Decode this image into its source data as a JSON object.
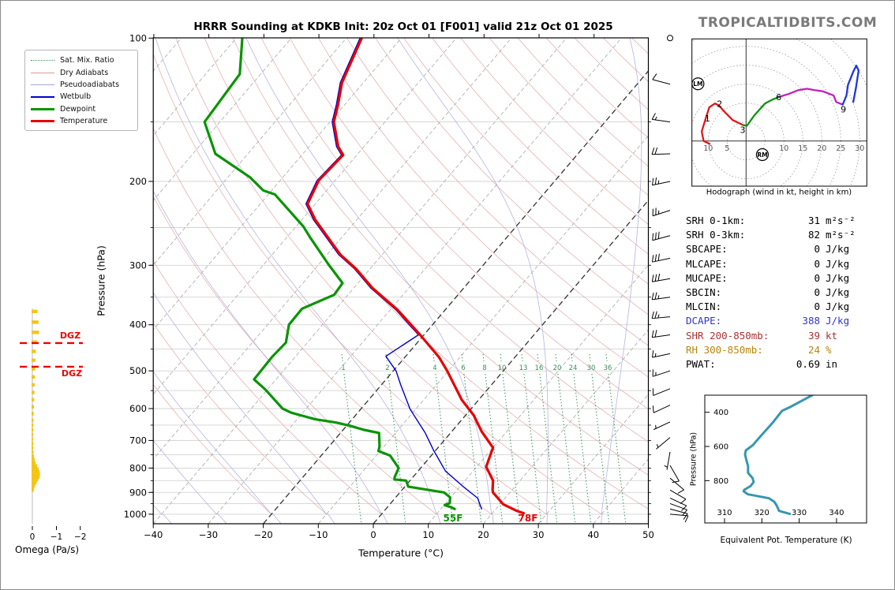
{
  "page": {
    "title": "HRRR Sounding at KDKB Init: 20z Oct 01 [F001] valid 21z Oct 01 2025",
    "brand": "TROPICALTIDBITS.COM"
  },
  "skewt": {
    "xlabel": "Temperature (°C)",
    "ylabel": "Pressure (hPa)",
    "surface_temp_label": "78F",
    "surface_dewp_label": "55F",
    "legend": [
      {
        "label": "Sat. Mix. Ratio"
      },
      {
        "label": "Dry Adiabats"
      },
      {
        "label": "Pseudoadiabats"
      },
      {
        "label": "Wetbulb"
      },
      {
        "label": "Dewpoint"
      },
      {
        "label": "Temperature"
      }
    ]
  },
  "omega": {
    "label": "Omega (Pa/s)",
    "ticks": [
      "0",
      "−1",
      "−2"
    ],
    "dgz_label": "DGZ"
  },
  "hodograph": {
    "caption": "Hodograph (wind in kt, height in km)",
    "lm_label": "LM",
    "rm_label": "RM"
  },
  "thetae": {
    "xlabel": "Equivalent Pot. Temperature (K)",
    "ylabel": "Pressure (hPa)"
  },
  "stats": {
    "rows": [
      {
        "label": "SRH 0-1km:",
        "value": "31",
        "unit": "m²s⁻²",
        "color": "#000000"
      },
      {
        "label": "SRH 0-3km:",
        "value": "82",
        "unit": "m²s⁻²",
        "color": "#000000"
      },
      {
        "label": "SBCAPE:",
        "value": "0",
        "unit": "J/kg",
        "color": "#000000"
      },
      {
        "label": "MLCAPE:",
        "value": "0",
        "unit": "J/kg",
        "color": "#000000"
      },
      {
        "label": "MUCAPE:",
        "value": "0",
        "unit": "J/kg",
        "color": "#000000"
      },
      {
        "label": "SBCIN:",
        "value": "0",
        "unit": "J/kg",
        "color": "#000000"
      },
      {
        "label": "MLCIN:",
        "value": "0",
        "unit": "J/kg",
        "color": "#000000"
      },
      {
        "label": "DCAPE:",
        "value": "388",
        "unit": "J/kg",
        "color": "#3333cc"
      },
      {
        "label": "SHR 200-850mb:",
        "value": "39",
        "unit": "kt",
        "color": "#aa3333"
      },
      {
        "label": "RH 300-850mb:",
        "value": "24",
        "unit": "%",
        "color": "#b8860b"
      },
      {
        "label": "PWAT:",
        "value": "0.69",
        "unit": "in",
        "color": "#000000"
      }
    ]
  },
  "chart_data": {
    "type": "skewt-log-p sounding",
    "temp_axis": {
      "label": "Temperature (°C)",
      "min": -40,
      "max": 50,
      "tick_step": 10
    },
    "pressure_axis": {
      "label": "Pressure (hPa)",
      "min": 100,
      "max": 1045,
      "labeled_ticks": [
        100,
        200,
        300,
        400,
        500,
        600,
        700,
        800,
        900,
        1000
      ],
      "minor_step": 50
    },
    "temperature_profile_p_degC": [
      [
        100,
        -77.2
      ],
      [
        124,
        -73.9
      ],
      [
        138,
        -71.2
      ],
      [
        150,
        -69.3
      ],
      [
        169,
        -64.7
      ],
      [
        176,
        -62.5
      ],
      [
        199,
        -63.0
      ],
      [
        223,
        -61.4
      ],
      [
        241,
        -57.5
      ],
      [
        257,
        -53.7
      ],
      [
        285,
        -47.6
      ],
      [
        305,
        -42.6
      ],
      [
        335,
        -36.6
      ],
      [
        372,
        -28.7
      ],
      [
        420,
        -20.7
      ],
      [
        468,
        -13.8
      ],
      [
        500,
        -10.2
      ],
      [
        575,
        -3.1
      ],
      [
        620,
        1.5
      ],
      [
        670,
        5.4
      ],
      [
        725,
        10.0
      ],
      [
        795,
        11.7
      ],
      [
        850,
        15.1
      ],
      [
        888,
        16.4
      ],
      [
        900,
        16.9
      ],
      [
        953,
        20.6
      ],
      [
        985,
        24.2
      ],
      [
        995,
        25.7
      ]
    ],
    "dewpoint_profile_p_degC": [
      [
        100,
        -98.9
      ],
      [
        119,
        -93.8
      ],
      [
        150,
        -92.8
      ],
      [
        175,
        -85.9
      ],
      [
        196,
        -76.0
      ],
      [
        209,
        -71.5
      ],
      [
        213,
        -68.8
      ],
      [
        249,
        -58.6
      ],
      [
        262,
        -55.8
      ],
      [
        299,
        -48.2
      ],
      [
        327,
        -42.8
      ],
      [
        346,
        -42.5
      ],
      [
        370,
        -46.2
      ],
      [
        400,
        -46.1
      ],
      [
        436,
        -43.9
      ],
      [
        467,
        -44.2
      ],
      [
        521,
        -44.0
      ],
      [
        547,
        -40.4
      ],
      [
        600,
        -34.3
      ],
      [
        612,
        -32.1
      ],
      [
        632,
        -26.7
      ],
      [
        642,
        -22.4
      ],
      [
        652,
        -19.4
      ],
      [
        665,
        -16.2
      ],
      [
        675,
        -13.0
      ],
      [
        721,
        -10.8
      ],
      [
        737,
        -10.3
      ],
      [
        753,
        -7.5
      ],
      [
        800,
        -4.0
      ],
      [
        837,
        -3.3
      ],
      [
        845,
        -3.0
      ],
      [
        850,
        -0.7
      ],
      [
        875,
        0.6
      ],
      [
        900,
        8.0
      ],
      [
        922,
        9.9
      ],
      [
        948,
        10.7
      ],
      [
        957,
        10.1
      ],
      [
        967,
        11.6
      ],
      [
        975,
        12.5
      ]
    ],
    "wetbulb_profile_p_degC": [
      [
        100,
        -77.5
      ],
      [
        124,
        -74.2
      ],
      [
        138,
        -71.5
      ],
      [
        150,
        -69.6
      ],
      [
        169,
        -65.0
      ],
      [
        176,
        -62.8
      ],
      [
        199,
        -63.3
      ],
      [
        223,
        -61.7
      ],
      [
        241,
        -57.8
      ],
      [
        257,
        -54.0
      ],
      [
        285,
        -47.9
      ],
      [
        305,
        -42.9
      ],
      [
        335,
        -36.9
      ],
      [
        372,
        -29.0
      ],
      [
        420,
        -21.0
      ],
      [
        466,
        -23.6
      ],
      [
        500,
        -19.5
      ],
      [
        535,
        -16.5
      ],
      [
        602,
        -11.0
      ],
      [
        675,
        -4.6
      ],
      [
        737,
        -0.2
      ],
      [
        812,
        5.0
      ],
      [
        875,
        10.6
      ],
      [
        925,
        15.0
      ],
      [
        975,
        17.4
      ]
    ],
    "surface_values": {
      "temperature_F": 78,
      "dewpoint_F": 55
    },
    "mixing_ratio_labels_gkg": [
      1,
      2,
      4,
      6,
      8,
      10,
      13,
      16,
      20,
      24,
      30,
      36
    ],
    "mixing_ratio_label_x": [
      434,
      490,
      550,
      586,
      613,
      635,
      662,
      682,
      705,
      725,
      748,
      769
    ],
    "isotherms": {
      "min": -110,
      "max": 50,
      "step": 10,
      "highlighted": [
        0,
        -20
      ]
    },
    "dry_adiabats_theta_degC": {
      "min": -20,
      "max": 210,
      "step": 10
    },
    "pseudoadiabats_t1000_degC": {
      "min": -60,
      "max": 60,
      "step": 10
    },
    "dgz_pressures_hPa": [
      437,
      490
    ],
    "omega_bars_p_PaPerS": [
      [
        375,
        -0.2
      ],
      [
        395,
        -0.24
      ],
      [
        415,
        -0.26
      ],
      [
        435,
        -0.18
      ],
      [
        455,
        -0.13
      ],
      [
        475,
        -0.11
      ],
      [
        495,
        -0.1
      ],
      [
        515,
        -0.09
      ],
      [
        535,
        -0.08
      ],
      [
        555,
        -0.07
      ],
      [
        575,
        -0.06
      ],
      [
        595,
        -0.05
      ],
      [
        615,
        -0.04
      ],
      [
        635,
        -0.03
      ],
      [
        650,
        -0.02
      ],
      [
        665,
        -0.02
      ],
      [
        680,
        -0.015
      ],
      [
        695,
        -0.015
      ],
      [
        710,
        -0.02
      ],
      [
        725,
        -0.02
      ],
      [
        740,
        -0.03
      ],
      [
        755,
        -0.05
      ],
      [
        768,
        -0.08
      ],
      [
        780,
        -0.12
      ],
      [
        792,
        -0.18
      ],
      [
        803,
        -0.24
      ],
      [
        814,
        -0.28
      ],
      [
        825,
        -0.3
      ],
      [
        836,
        -0.28
      ],
      [
        847,
        -0.22
      ],
      [
        858,
        -0.16
      ],
      [
        870,
        -0.1
      ],
      [
        880,
        -0.06
      ],
      [
        890,
        -0.04
      ]
    ],
    "omega_axis": {
      "ticks": [
        0,
        -1,
        -2
      ],
      "unit": "Pa/s"
    },
    "winds_p_kt_dirFrom": [
      [
        100,
        0,
        0
      ],
      [
        125,
        10,
        285
      ],
      [
        150,
        15,
        278
      ],
      [
        175,
        20,
        268
      ],
      [
        200,
        25,
        258
      ],
      [
        230,
        28,
        252
      ],
      [
        260,
        30,
        255
      ],
      [
        290,
        30,
        258
      ],
      [
        320,
        30,
        260
      ],
      [
        350,
        28,
        262
      ],
      [
        385,
        25,
        265
      ],
      [
        420,
        22,
        262
      ],
      [
        460,
        18,
        258
      ],
      [
        500,
        15,
        252
      ],
      [
        545,
        12,
        248
      ],
      [
        590,
        10,
        245
      ],
      [
        640,
        8,
        245
      ],
      [
        690,
        5,
        230
      ],
      [
        740,
        5,
        190
      ],
      [
        790,
        10,
        150
      ],
      [
        840,
        14,
        130
      ],
      [
        890,
        14,
        120
      ],
      [
        925,
        13,
        115
      ],
      [
        950,
        12,
        110
      ],
      [
        975,
        10,
        105
      ],
      [
        1000,
        10,
        95
      ]
    ],
    "hodograph": {
      "ring_step_kt": 5,
      "left_axis_labels": [
        10,
        5
      ],
      "right_axis_labels": [
        10,
        15,
        20,
        25,
        30
      ],
      "segments": [
        {
          "name": "0-3km",
          "color": "#e01818",
          "uv": [
            [
              -9.6,
              -0.8
            ],
            [
              -11.2,
              0.0
            ],
            [
              -11.7,
              2.5
            ],
            [
              -10.8,
              5.5
            ],
            [
              -9.7,
              8.9
            ],
            [
              -8.2,
              9.9
            ],
            [
              -7.2,
              9.4
            ],
            [
              -5.5,
              7.5
            ],
            [
              -3.5,
              5.5
            ],
            [
              -0.8,
              4.2
            ]
          ]
        },
        {
          "name": "3-6km",
          "color": "#0f9410",
          "uv": [
            [
              -0.8,
              4.2
            ],
            [
              0.2,
              4.0
            ],
            [
              2.2,
              6.8
            ],
            [
              5.0,
              9.9
            ],
            [
              7.1,
              11.0
            ],
            [
              9.2,
              11.8
            ]
          ]
        },
        {
          "name": "6-9km",
          "color": "#c21fc2",
          "uv": [
            [
              9.2,
              11.8
            ],
            [
              11.2,
              12.4
            ],
            [
              13.7,
              13.4
            ],
            [
              16.1,
              13.8
            ],
            [
              18.2,
              13.4
            ],
            [
              20.3,
              13.1
            ],
            [
              23.1,
              12.0
            ],
            [
              23.8,
              10.3
            ],
            [
              25.5,
              9.6
            ]
          ]
        },
        {
          "name": "9km+",
          "color": "#1f35e0",
          "uv": [
            [
              25.5,
              9.6
            ],
            [
              26.5,
              12.0
            ],
            [
              26.9,
              14.8
            ],
            [
              28.3,
              18.3
            ],
            [
              29.1,
              19.9
            ],
            [
              29.7,
              18.6
            ],
            [
              29.0,
              14.0
            ],
            [
              28.3,
              10.3
            ]
          ]
        }
      ],
      "height_labels_km": [
        {
          "t": "1",
          "u": -10.2,
          "v": 6.0
        },
        {
          "t": "2",
          "u": -7.0,
          "v": 9.8
        },
        {
          "t": "3",
          "u": -0.9,
          "v": 3.0
        },
        {
          "t": "6",
          "u": 8.6,
          "v": 11.6
        },
        {
          "t": "9",
          "u": 25.7,
          "v": 8.4
        }
      ],
      "storm_motions": [
        {
          "t": "LM",
          "u": -12.7,
          "v": 15.1
        },
        {
          "t": "RM",
          "u": 4.3,
          "v": -3.6
        }
      ]
    },
    "theta_e_profile_p_K": [
      [
        300,
        333.5
      ],
      [
        369,
        327.6
      ],
      [
        392,
        325.4
      ],
      [
        461,
        322.9
      ],
      [
        539,
        319.7
      ],
      [
        592,
        317.6
      ],
      [
        623,
        315.7
      ],
      [
        646,
        315.5
      ],
      [
        684,
        315.9
      ],
      [
        715,
        316.3
      ],
      [
        754,
        316.3
      ],
      [
        785,
        317.5
      ],
      [
        808,
        317.8
      ],
      [
        831,
        317.0
      ],
      [
        854,
        315.3
      ],
      [
        862,
        315.1
      ],
      [
        880,
        316.3
      ],
      [
        903,
        321.9
      ],
      [
        923,
        323.3
      ],
      [
        946,
        324.0
      ],
      [
        977,
        324.6
      ],
      [
        995,
        327.5
      ]
    ],
    "theta_e_axis": {
      "x_ticks": [
        310,
        320,
        330,
        340
      ],
      "y_ticks": [
        400,
        600,
        800
      ]
    },
    "colors": {
      "temperature": "#e60000",
      "dewpoint": "#0a9405",
      "wetbulb": "#0000cc",
      "theta_e": "#3797b0",
      "omega_bars": "#f5c516",
      "dgz": "#ee0000",
      "mixing_ratio": "#3a8f5a",
      "dry_adiabat": "#dc9898",
      "pseudoadiabat": "#a3a3d6"
    }
  }
}
